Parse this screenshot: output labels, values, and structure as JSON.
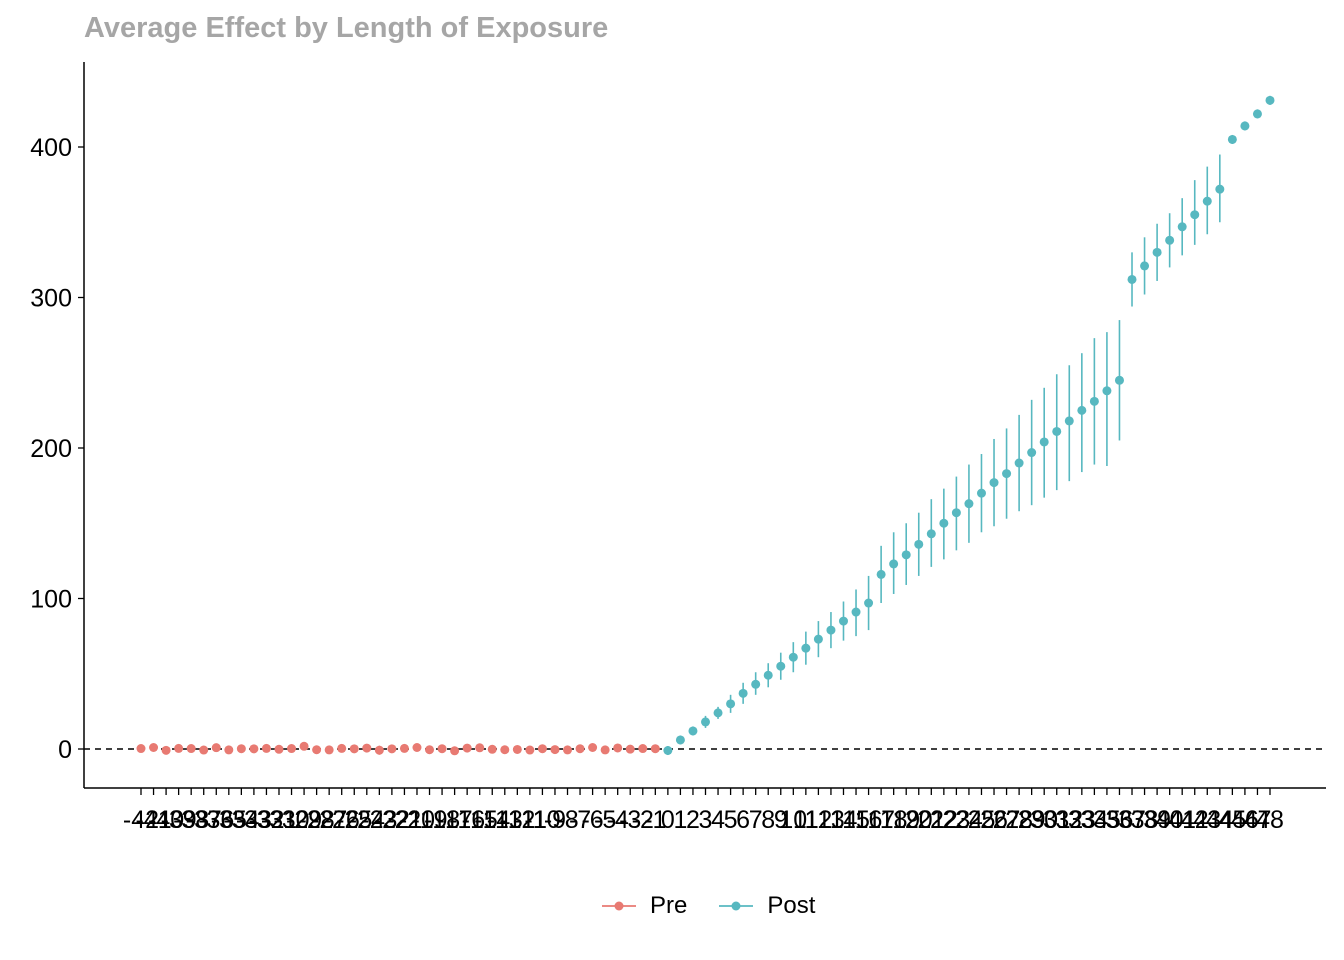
{
  "chart_data": {
    "type": "scatter",
    "title": "Average Effect by Length of Exposure",
    "xlabel": "",
    "ylabel": "",
    "ylim": [
      -27,
      456
    ],
    "y_ticks": [
      0,
      100,
      200,
      300,
      400
    ],
    "reference_line": 0,
    "grid": false,
    "legend_position": "bottom",
    "x": [
      -42,
      -41,
      -40,
      -39,
      -38,
      -37,
      -36,
      -35,
      -34,
      -33,
      -32,
      -31,
      -30,
      -29,
      -28,
      -27,
      -26,
      -25,
      -24,
      -23,
      -22,
      -21,
      -20,
      -19,
      -18,
      -17,
      -16,
      -15,
      -14,
      -13,
      -12,
      -11,
      -10,
      -9,
      -8,
      -7,
      -6,
      -5,
      -4,
      -3,
      -2,
      -1,
      0,
      1,
      2,
      3,
      4,
      5,
      6,
      7,
      8,
      9,
      10,
      11,
      12,
      13,
      14,
      15,
      16,
      17,
      18,
      19,
      20,
      21,
      22,
      23,
      24,
      25,
      26,
      27,
      28,
      29,
      30,
      31,
      32,
      33,
      34,
      35,
      36,
      37,
      38,
      39,
      40,
      41,
      42,
      43,
      44,
      45,
      46,
      47,
      48
    ],
    "series": [
      {
        "name": "Pre",
        "color": "#e87a72",
        "x": [
          -42,
          -41,
          -40,
          -39,
          -38,
          -37,
          -36,
          -35,
          -34,
          -33,
          -32,
          -31,
          -30,
          -29,
          -28,
          -27,
          -26,
          -25,
          -24,
          -23,
          -22,
          -21,
          -20,
          -19,
          -18,
          -17,
          -16,
          -15,
          -14,
          -13,
          -12,
          -11,
          -10,
          -9,
          -8,
          -7,
          -6,
          -5,
          -4,
          -3,
          -2,
          -1
        ],
        "y": [
          0.3,
          1.0,
          -0.9,
          0.4,
          0.3,
          -0.7,
          0.9,
          -0.6,
          0.2,
          0.1,
          0.4,
          -0.2,
          0.3,
          1.8,
          -0.5,
          -0.6,
          0.4,
          0.1,
          0.6,
          -0.8,
          0.1,
          0.4,
          1.0,
          -0.5,
          0.2,
          -1.2,
          0.6,
          0.8,
          -0.2,
          -0.5,
          -0.3,
          -0.7,
          0.2,
          -0.4,
          -0.6,
          0.2,
          1.0,
          -0.6,
          0.7,
          -0.1,
          0.3,
          0.2
        ],
        "lower": [
          -0.7,
          0.0,
          -1.9,
          -0.6,
          -0.7,
          -1.7,
          -0.1,
          -1.6,
          -0.8,
          -0.9,
          -0.6,
          -1.2,
          -0.7,
          0.8,
          -1.5,
          -1.6,
          -0.6,
          -0.9,
          -0.4,
          -3.8,
          -0.9,
          -0.6,
          0.0,
          -1.5,
          -0.8,
          -2.2,
          -0.4,
          -0.2,
          -1.2,
          -1.5,
          -1.3,
          -1.7,
          -0.8,
          -1.4,
          -1.6,
          -0.8,
          0.0,
          -1.6,
          -0.3,
          -1.1,
          -0.7,
          -0.8
        ],
        "upper": [
          1.3,
          2.0,
          0.1,
          1.4,
          1.3,
          0.3,
          1.9,
          0.4,
          1.2,
          1.1,
          1.4,
          0.8,
          1.3,
          2.8,
          0.5,
          0.4,
          1.4,
          1.1,
          1.6,
          2.2,
          1.1,
          1.4,
          2.0,
          0.5,
          1.2,
          -0.2,
          1.6,
          1.8,
          0.8,
          0.5,
          0.7,
          0.3,
          1.2,
          0.6,
          0.4,
          1.2,
          2.0,
          0.4,
          1.7,
          0.9,
          1.3,
          1.2
        ]
      },
      {
        "name": "Post",
        "color": "#57b8c0",
        "x": [
          0,
          1,
          2,
          3,
          4,
          5,
          6,
          7,
          8,
          9,
          10,
          11,
          12,
          13,
          14,
          15,
          16,
          17,
          18,
          19,
          20,
          21,
          22,
          23,
          24,
          25,
          26,
          27,
          28,
          29,
          30,
          31,
          32,
          33,
          34,
          35,
          36,
          37,
          38,
          39,
          40,
          41,
          42,
          43,
          44,
          45,
          46,
          47,
          48
        ],
        "y": [
          -1,
          6,
          12,
          18,
          24,
          30,
          37,
          43,
          49,
          55,
          61,
          67,
          73,
          79,
          85,
          91,
          97,
          116,
          123,
          129,
          136,
          143,
          150,
          157,
          163,
          170,
          177,
          183,
          190,
          197,
          204,
          211,
          218,
          225,
          231,
          238,
          245,
          312,
          321,
          330,
          338,
          347,
          355,
          364,
          372,
          405,
          414,
          422,
          431
        ],
        "lower": [
          -4,
          3,
          9,
          14,
          20,
          24,
          30,
          36,
          41,
          46,
          51,
          56,
          61,
          67,
          72,
          75,
          79,
          97,
          103,
          109,
          115,
          121,
          126,
          132,
          137,
          144,
          148,
          153,
          158,
          162,
          167,
          172,
          178,
          184,
          189,
          188,
          205,
          294,
          302,
          311,
          320,
          328,
          335,
          342,
          350,
          402,
          411,
          419,
          428
        ],
        "upper": [
          2,
          9,
          15,
          22,
          28,
          36,
          44,
          51,
          57,
          64,
          71,
          78,
          85,
          91,
          98,
          106,
          115,
          135,
          144,
          150,
          157,
          166,
          173,
          181,
          189,
          196,
          206,
          213,
          222,
          232,
          240,
          249,
          255,
          263,
          273,
          277,
          285,
          330,
          340,
          349,
          356,
          366,
          378,
          387,
          395,
          408,
          417,
          425,
          434
        ]
      }
    ]
  }
}
